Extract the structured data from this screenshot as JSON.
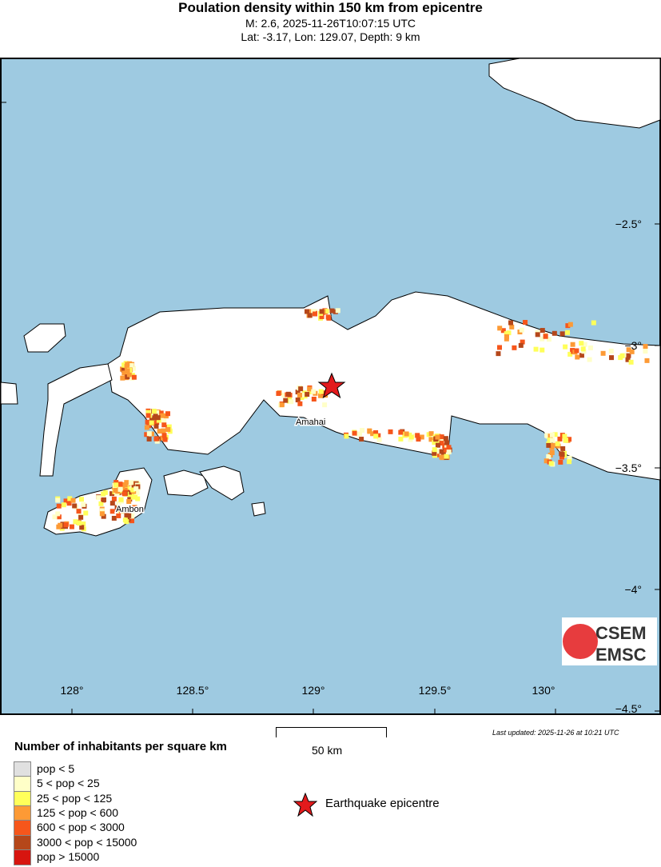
{
  "title": "Poulation density within 150 km from epicentre",
  "subtitle1": "M: 2.6,  2025-11-26T10:07:15 UTC",
  "subtitle2": "Lat: -3.17, Lon: 129.07, Depth: 9 km",
  "map": {
    "lon_ticks": [
      "128°",
      "128.5°",
      "129°",
      "129.5°",
      "130°"
    ],
    "lat_ticks": [
      "−2.5°",
      "−3°",
      "−3.5°",
      "−4°",
      "−4.5°"
    ],
    "places": [
      "Amahai",
      "Ambon"
    ],
    "epicentre": {
      "lat": -3.17,
      "lon": 129.07
    },
    "colors": {
      "sea": "#9ecae1",
      "land": "#ffffff",
      "epicentre": "#e31a1c"
    },
    "logo": [
      "CSEM",
      "EMSC"
    ]
  },
  "scale_bar": "50 km",
  "last_updated": "Last updated: 2025-11-26 at 10:21 UTC",
  "legend": {
    "title": "Number of inhabitants per square km",
    "items": [
      {
        "label": "pop < 5",
        "color": "#e0e0e0"
      },
      {
        "label": "5 < pop < 25",
        "color": "#ffffc8"
      },
      {
        "label": "25 < pop < 125",
        "color": "#ffff5a"
      },
      {
        "label": "125 < pop < 600",
        "color": "#fd9a35"
      },
      {
        "label": "600 < pop < 3000",
        "color": "#f6561b"
      },
      {
        "label": "3000 < pop < 15000",
        "color": "#b5471a"
      },
      {
        "label": "pop > 15000",
        "color": "#d7150f"
      }
    ],
    "epicentre_label": "Earthquake epicentre"
  }
}
